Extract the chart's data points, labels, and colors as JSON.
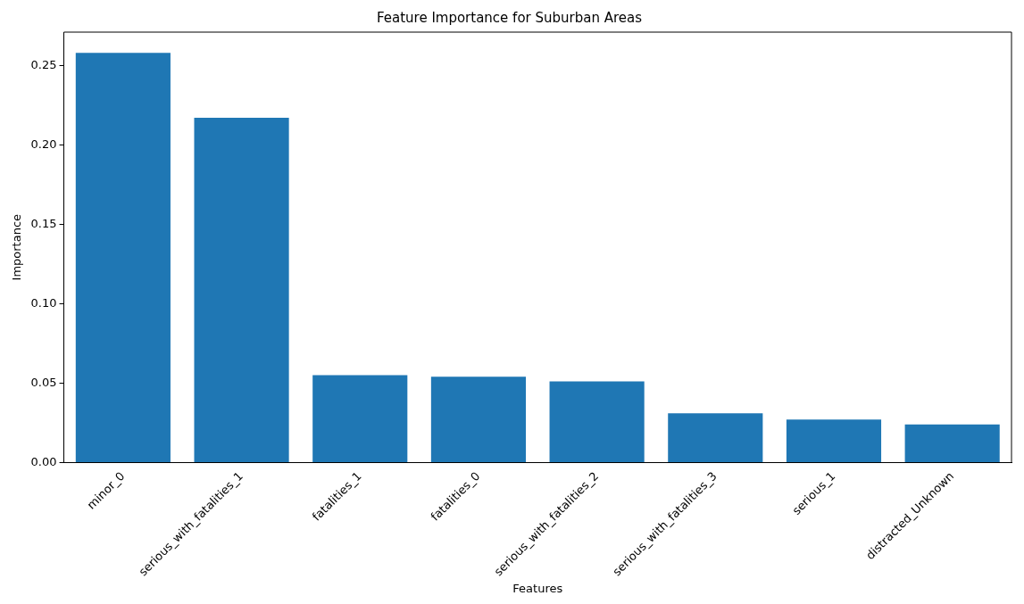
{
  "chart_data": {
    "type": "bar",
    "title": "Feature Importance for Suburban Areas",
    "xlabel": "Features",
    "ylabel": "Importance",
    "categories": [
      "minor_0",
      "serious_with_fatalities_1",
      "fatalities_1",
      "fatalities_0",
      "serious_with_fatalities_2",
      "serious_with_fatalities_3",
      "serious_1",
      "distracted_Unknown"
    ],
    "values": [
      0.258,
      0.217,
      0.055,
      0.054,
      0.051,
      0.031,
      0.027,
      0.024
    ],
    "color": "#1f77b4",
    "ylim": [
      0,
      0.271
    ],
    "yticks": [
      {
        "value": 0,
        "label": "0.00"
      },
      {
        "value": 0.05,
        "label": "0.05"
      },
      {
        "value": 0.1,
        "label": "0.10"
      },
      {
        "value": 0.15,
        "label": "0.15"
      },
      {
        "value": 0.2,
        "label": "0.20"
      },
      {
        "value": 0.25,
        "label": "0.25"
      }
    ],
    "grid": false,
    "legend": false
  }
}
